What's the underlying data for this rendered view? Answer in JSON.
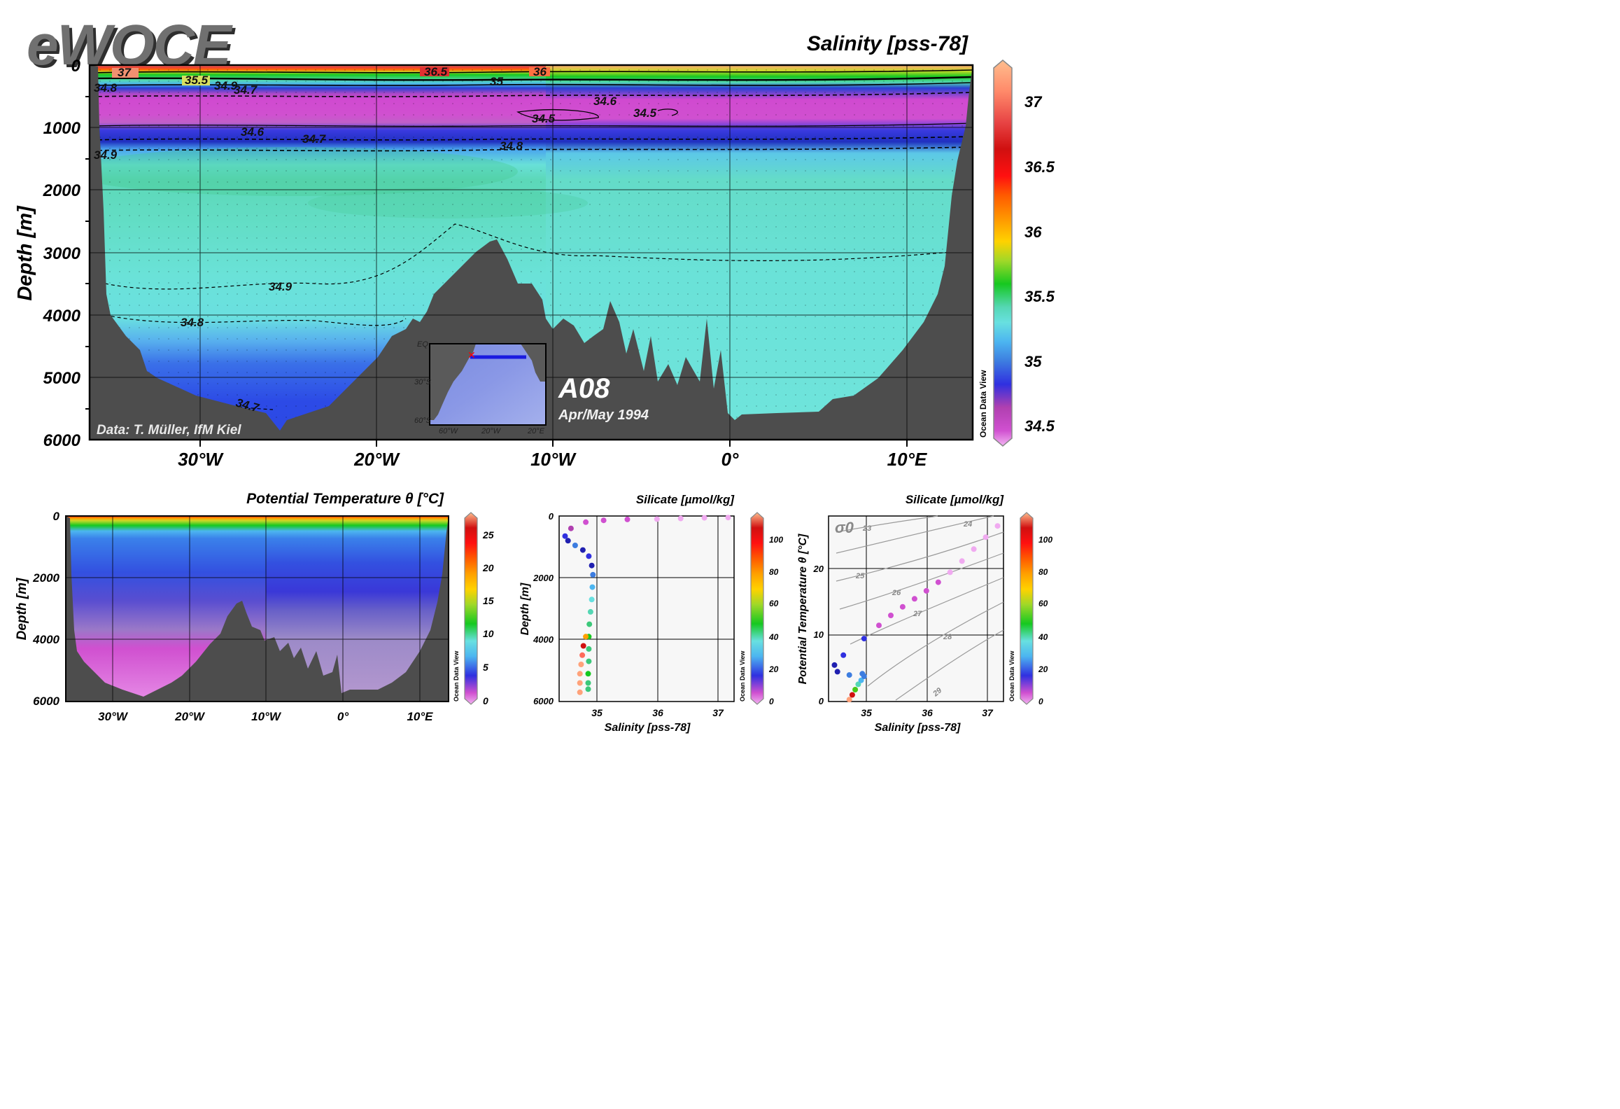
{
  "logo": "eWOCE",
  "colors": {
    "land": "#4d4d4d",
    "colormap": [
      "#f0aaf0",
      "#d050d0",
      "#b040b0",
      "#3030e0",
      "#2020b0",
      "#3d7de0",
      "#4cb5f0",
      "#68e0e0",
      "#55d7b4",
      "#3cc87a",
      "#16c820",
      "#48c818",
      "#c8d828",
      "#ffd200",
      "#ffa000",
      "#ff6a00",
      "#ff1010",
      "#d01010",
      "#e83a3a",
      "#ff6a5a",
      "#ffa27a",
      "#ffc28e"
    ]
  },
  "main": {
    "title": "Salinity [pss-78]",
    "ylabel": "Depth [m]",
    "yticks": [
      "0",
      "1000",
      "2000",
      "3000",
      "4000",
      "5000",
      "6000"
    ],
    "xticks": [
      "30°W",
      "20°W",
      "10°W",
      "0°",
      "10°E"
    ],
    "credit": "Data: T. Müller, IfM Kiel",
    "section": "A08",
    "date": "Apr/May 1994",
    "odv": "Ocean Data View",
    "cbar_ticks": [
      "37",
      "36.5",
      "36",
      "35.5",
      "35",
      "34.5"
    ],
    "contour_labels": [
      "37",
      "35.5",
      "34.9",
      "34.7",
      "34.8",
      "36.5",
      "36",
      "35",
      "34.6",
      "34.5",
      "34.5",
      "34.6",
      "34.7",
      "34.8",
      "34.9",
      "34.9",
      "34.8",
      "34.7"
    ]
  },
  "inset": {
    "lat_labels": [
      "EQ",
      "30°S",
      "60°S"
    ],
    "lon_labels": [
      "60°W",
      "20°W",
      "20°E"
    ]
  },
  "panel_temp": {
    "title": "Potential Temperature θ [°C]",
    "ylabel": "Depth [m]",
    "yticks": [
      "0",
      "2000",
      "4000",
      "6000"
    ],
    "xticks": [
      "30°W",
      "20°W",
      "10°W",
      "0°",
      "10°E"
    ],
    "cbar_ticks": [
      "25",
      "20",
      "15",
      "10",
      "5",
      "0"
    ],
    "odv": "Ocean Data View"
  },
  "panel_sal_depth": {
    "title": "Silicate [µmol/kg]",
    "ylabel": "Depth [m]",
    "xlabel": "Salinity [pss-78]",
    "yticks": [
      "0",
      "2000",
      "4000",
      "6000"
    ],
    "xticks": [
      "35",
      "36",
      "37"
    ],
    "cbar_ticks": [
      "100",
      "80",
      "60",
      "40",
      "20",
      "0"
    ],
    "odv": "Ocean Data View"
  },
  "panel_ts": {
    "title": "Silicate [µmol/kg]",
    "ylabel": "Potential Temperature θ [°C]",
    "xlabel": "Salinity [pss-78]",
    "yticks": [
      "0",
      "10",
      "20"
    ],
    "xticks": [
      "35",
      "36",
      "37"
    ],
    "sigma_label": "σ0",
    "isopycnals": [
      "23",
      "24",
      "25",
      "26",
      "27",
      "28",
      "29"
    ],
    "cbar_ticks": [
      "100",
      "80",
      "60",
      "40",
      "20",
      "0"
    ],
    "odv": "Ocean Data View"
  },
  "chart_data": [
    {
      "type": "heatmap",
      "title": "Salinity [pss-78]",
      "xlabel": "",
      "ylabel": "Depth [m]",
      "xlim": [
        -36,
        13.5
      ],
      "ylim": [
        6000,
        0
      ],
      "colorbar": {
        "label": "Salinity [pss-78]",
        "range": [
          34.4,
          37.3
        ],
        "ticks": [
          34.5,
          35,
          35.5,
          36,
          36.5,
          37
        ]
      },
      "profile_depth_m": [
        0,
        100,
        200,
        400,
        600,
        800,
        1000,
        1200,
        1500,
        2000,
        3000,
        4000,
        4500,
        5000,
        5500
      ],
      "profile_salinity": [
        36.8,
        36.0,
        35.3,
        34.9,
        34.55,
        34.45,
        34.55,
        34.72,
        34.88,
        34.95,
        34.9,
        34.8,
        34.72,
        34.7,
        34.7
      ]
    },
    {
      "type": "heatmap",
      "title": "Potential Temperature θ [°C]",
      "ylabel": "Depth [m]",
      "xlim": [
        -36,
        13.5
      ],
      "ylim": [
        6000,
        0
      ],
      "colorbar": {
        "label": "Potential Temperature θ [°C]",
        "range": [
          0,
          28
        ],
        "ticks": [
          0,
          5,
          10,
          15,
          20,
          25
        ]
      }
    },
    {
      "type": "scatter",
      "title": "Silicate [µmol/kg]",
      "xlabel": "Salinity [pss-78]",
      "ylabel": "Depth [m]",
      "xlim": [
        34.35,
        37.3
      ],
      "ylim": [
        6000,
        0
      ],
      "series": [
        {
          "x": [
            37.2,
            36.8,
            36.4,
            36.0,
            35.5,
            35.1,
            34.8,
            34.55,
            34.45,
            34.5,
            34.62,
            34.75,
            34.85,
            34.9,
            34.92,
            34.91,
            34.9,
            34.88,
            34.86,
            34.85,
            34.85,
            34.85,
            34.84,
            34.84,
            34.84
          ],
          "y": [
            50,
            60,
            80,
            100,
            110,
            140,
            200,
            400,
            650,
            800,
            950,
            1100,
            1300,
            1600,
            1900,
            2300,
            2700,
            3100,
            3500,
            3900,
            4300,
            4700,
            5100,
            5400,
            5600
          ],
          "c": [
            1,
            1,
            1,
            2,
            3,
            5,
            8,
            12,
            18,
            22,
            26,
            22,
            18,
            20,
            25,
            32,
            40,
            45,
            50,
            55,
            50,
            52,
            55,
            52,
            50
          ]
        },
        {
          "x": [
            34.8,
            34.76,
            34.74,
            34.72,
            34.7,
            34.7,
            34.7
          ],
          "y": [
            3900,
            4200,
            4500,
            4800,
            5100,
            5400,
            5700
          ],
          "c": [
            78,
            95,
            105,
            110,
            112,
            110,
            108
          ]
        }
      ],
      "colorbar": {
        "label": "Silicate [µmol/kg]",
        "range": [
          0,
          115
        ],
        "ticks": [
          0,
          20,
          40,
          60,
          80,
          100
        ]
      }
    },
    {
      "type": "scatter",
      "title": "Silicate [µmol/kg]",
      "xlabel": "Salinity [pss-78]",
      "ylabel": "Potential Temperature θ [°C]",
      "xlim": [
        34.35,
        37.3
      ],
      "ylim": [
        0,
        28
      ],
      "series": [
        {
          "x": [
            34.7,
            34.75,
            34.8,
            34.85,
            34.9,
            34.95,
            34.92,
            34.7,
            34.5,
            34.45,
            34.6,
            34.95,
            35.2,
            35.4,
            35.6,
            35.8,
            36.0,
            36.2,
            36.4,
            36.6,
            36.8,
            37.0,
            37.2
          ],
          "y": [
            0.3,
            1.0,
            1.8,
            2.6,
            3.2,
            3.8,
            4.2,
            4.0,
            4.5,
            5.5,
            7.0,
            9.5,
            11.5,
            13.0,
            14.3,
            15.5,
            16.7,
            18.0,
            19.5,
            21.2,
            23.0,
            24.8,
            26.5
          ],
          "c": [
            110,
            95,
            60,
            45,
            35,
            30,
            28,
            25,
            22,
            20,
            18,
            14,
            8,
            6,
            5,
            4,
            3,
            3,
            2,
            2,
            1,
            1,
            1
          ]
        }
      ],
      "isopycnals": [
        23,
        24,
        25,
        26,
        27,
        28,
        29
      ],
      "colorbar": {
        "label": "Silicate [µmol/kg]",
        "range": [
          0,
          115
        ],
        "ticks": [
          0,
          20,
          40,
          60,
          80,
          100
        ]
      }
    }
  ]
}
